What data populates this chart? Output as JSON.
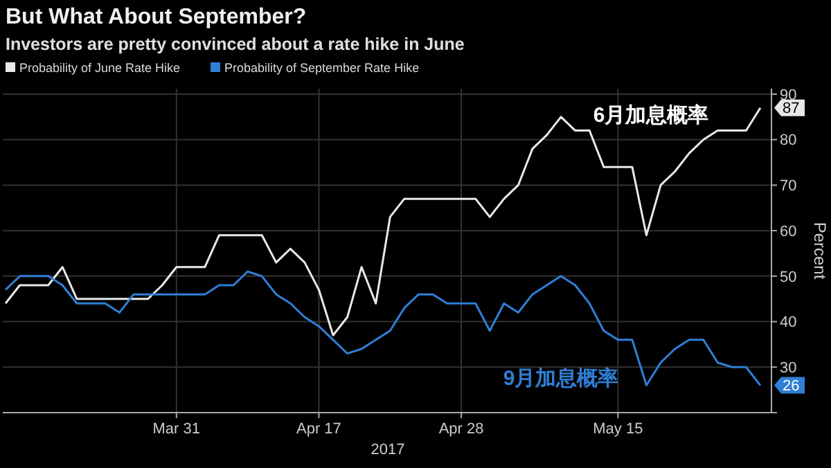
{
  "chart_data": {
    "type": "line",
    "title": "But What About September?",
    "subtitle": "Investors are pretty convinced about a rate hike in June",
    "xlabel": "2017",
    "ylabel": "Percent",
    "categories": [
      null,
      null,
      null,
      null,
      null,
      null,
      null,
      null,
      null,
      null,
      null,
      null,
      "Mar 31",
      null,
      null,
      null,
      null,
      null,
      null,
      null,
      null,
      null,
      "Apr 17",
      null,
      null,
      null,
      null,
      null,
      null,
      null,
      null,
      null,
      "Apr 28",
      null,
      null,
      null,
      null,
      null,
      null,
      null,
      null,
      null,
      null,
      "May 15",
      null,
      null,
      null,
      null,
      null,
      null,
      null,
      null,
      null,
      null
    ],
    "series": [
      {
        "name": "Probability of June Rate Hike",
        "color": "#e8e8e8",
        "values": [
          44,
          48,
          48,
          48,
          52,
          45,
          45,
          45,
          45,
          45,
          45,
          48,
          52,
          52,
          52,
          59,
          59,
          59,
          59,
          53,
          56,
          53,
          47,
          37,
          41,
          52,
          44,
          63,
          67,
          67,
          67,
          67,
          67,
          67,
          63,
          67,
          70,
          78,
          81,
          85,
          82,
          82,
          74,
          74,
          74,
          59,
          70,
          73,
          77,
          80,
          82,
          82,
          82,
          87
        ],
        "value_labels": [
          null,
          null,
          null,
          null,
          null,
          null,
          null,
          null,
          null,
          null,
          null,
          null,
          null,
          null,
          null,
          null,
          null,
          null,
          null,
          null,
          null,
          null,
          null,
          null,
          null,
          null,
          null,
          null,
          null,
          null,
          null,
          null,
          null,
          null,
          null,
          null,
          null,
          null,
          null,
          null,
          null,
          null,
          null,
          null,
          null,
          null,
          null,
          null,
          null,
          null,
          null,
          null,
          null,
          "87"
        ]
      },
      {
        "name": "Probability of September Rate Hike",
        "color": "#2f7fd6",
        "values": [
          47,
          50,
          50,
          50,
          48,
          44,
          44,
          44,
          42,
          46,
          46,
          46,
          46,
          46,
          46,
          48,
          48,
          51,
          50,
          46,
          44,
          41,
          39,
          36,
          33,
          34,
          36,
          38,
          43,
          46,
          46,
          44,
          44,
          44,
          38,
          44,
          42,
          46,
          48,
          50,
          48,
          44,
          38,
          36,
          36,
          26,
          31,
          34,
          36,
          36,
          31,
          30,
          30,
          26
        ],
        "value_labels": [
          null,
          null,
          null,
          null,
          null,
          null,
          null,
          null,
          null,
          null,
          null,
          null,
          null,
          null,
          null,
          null,
          null,
          null,
          null,
          null,
          null,
          null,
          null,
          null,
          null,
          null,
          null,
          null,
          null,
          null,
          null,
          null,
          null,
          null,
          null,
          null,
          null,
          null,
          null,
          null,
          null,
          null,
          null,
          null,
          null,
          null,
          null,
          null,
          null,
          null,
          null,
          null,
          null,
          "26"
        ]
      }
    ],
    "annotations": [
      "6月加息概率",
      "9月加息概率"
    ],
    "ylim": [
      20,
      90
    ],
    "yticks": [
      {
        "value": 20,
        "label": null
      },
      30,
      40,
      50,
      60,
      70,
      80,
      90
    ],
    "grid": true,
    "legend": "top left",
    "marker": "none",
    "line_style": "solid"
  }
}
